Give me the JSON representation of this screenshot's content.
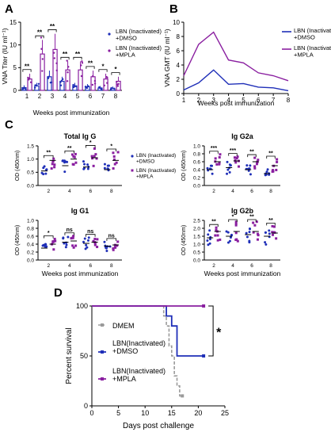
{
  "colors": {
    "dmso": "#1f2fb8",
    "mpla": "#8a1fa0",
    "dmem": "#9a9a9a",
    "axis": "#000000"
  },
  "chart_data": [
    {
      "panel": "A",
      "type": "bar",
      "xlabel": "Weeks post immunization",
      "ylabel": "VNA Titer (IU ml⁻¹)",
      "ylim": [
        0,
        15
      ],
      "yticks": [
        "0",
        "5",
        "10",
        "15"
      ],
      "categories": [
        "1",
        "2",
        "3",
        "4",
        "5",
        "6",
        "7",
        "8"
      ],
      "series": [
        {
          "name": "LBN (Inactivated) +DMSO",
          "values": [
            0.6,
            1.0,
            3.0,
            2.0,
            1.0,
            0.8,
            0.5,
            0.4
          ]
        },
        {
          "name": "LBN (Inactivated) +MPLA",
          "values": [
            2.5,
            8.0,
            9.0,
            4.5,
            4.5,
            3.0,
            2.5,
            2.0
          ]
        }
      ],
      "significance": [
        "**",
        "**",
        "**",
        "**",
        "**",
        "**",
        "*",
        "*"
      ]
    },
    {
      "panel": "B",
      "type": "line",
      "xlabel": "Weeks post immunization",
      "ylabel": "VNA GMT (IU ml⁻¹)",
      "ylim": [
        0,
        10
      ],
      "yticks": [
        "0",
        "2",
        "4",
        "6",
        "8",
        "10"
      ],
      "x": [
        1,
        2,
        3,
        4,
        5,
        6,
        7,
        8
      ],
      "series": [
        {
          "name": "LBN (Inactivated) +DMSO",
          "values": [
            0.5,
            1.5,
            3.3,
            1.3,
            1.4,
            0.9,
            0.8,
            0.4
          ]
        },
        {
          "name": "LBN (Inactivated) +MPLA",
          "values": [
            2.5,
            6.9,
            8.6,
            4.7,
            4.3,
            2.9,
            2.5,
            1.8
          ]
        }
      ]
    },
    {
      "panel": "C",
      "type": "scatter",
      "title": "Total Ig G",
      "ylabel": "OD (450nm)",
      "ylim": [
        0,
        1.5
      ],
      "yticks": [
        "0.0",
        "0.5",
        "1.0",
        "1.5"
      ],
      "categories": [
        "2",
        "4",
        "6",
        "8"
      ],
      "series": [
        {
          "name": "LBN (Inactivated) +DMSO",
          "means": [
            0.55,
            0.75,
            0.7,
            0.6
          ]
        },
        {
          "name": "LBN (Inactivated) +MPLA",
          "means": [
            0.95,
            1.0,
            1.05,
            0.95
          ]
        }
      ],
      "significance": [
        "**",
        "**",
        "*",
        "*"
      ]
    },
    {
      "panel": "C",
      "type": "scatter",
      "title": "Ig G2a",
      "ylabel": "OD (450nm)",
      "ylim": [
        0,
        1.0
      ],
      "yticks": [
        "0.0",
        "0.2",
        "0.4",
        "0.6",
        "0.8",
        "1.0"
      ],
      "categories": [
        "2",
        "4",
        "6",
        "8"
      ],
      "series": [
        {
          "name": "LBN (Inactivated) +DMSO",
          "means": [
            0.4,
            0.45,
            0.4,
            0.3
          ]
        },
        {
          "name": "LBN (Inactivated) +MPLA",
          "means": [
            0.6,
            0.62,
            0.6,
            0.5
          ]
        }
      ],
      "significance": [
        "***",
        "***",
        "**",
        "**"
      ]
    },
    {
      "panel": "C",
      "type": "scatter",
      "title": "Ig G1",
      "ylabel": "OD (450nm)",
      "ylim": [
        0,
        1.0
      ],
      "yticks": [
        "0.0",
        "0.2",
        "0.4",
        "0.6",
        "0.8",
        "1.0"
      ],
      "categories": [
        "2",
        "4",
        "6",
        "8"
      ],
      "series": [
        {
          "name": "LBN (Inactivated) +DMSO",
          "means": [
            0.3,
            0.45,
            0.42,
            0.35
          ]
        },
        {
          "name": "LBN (Inactivated) +MPLA",
          "means": [
            0.4,
            0.48,
            0.45,
            0.38
          ]
        }
      ],
      "significance": [
        "*",
        "ns",
        "ns",
        "ns"
      ]
    },
    {
      "panel": "C",
      "type": "scatter",
      "title": "Ig G2b",
      "ylabel": "OD (450nm)",
      "ylim": [
        0,
        2.5
      ],
      "yticks": [
        "0.0",
        "0.5",
        "1.0",
        "1.5",
        "2.0",
        "2.5"
      ],
      "categories": [
        "2",
        "4",
        "6",
        "8"
      ],
      "series": [
        {
          "name": "LBN (Inactivated) +DMSO",
          "means": [
            1.4,
            1.5,
            1.6,
            1.5
          ]
        },
        {
          "name": "LBN (Inactivated) +MPLA",
          "means": [
            1.8,
            1.8,
            1.8,
            1.7
          ]
        }
      ],
      "significance": [
        "**",
        "*",
        "**",
        "**"
      ]
    },
    {
      "panel": "D",
      "type": "line",
      "xlabel": "Days post challenge",
      "ylabel": "Percent survival",
      "xlim": [
        0,
        25
      ],
      "ylim": [
        0,
        100
      ],
      "xticks": [
        "0",
        "5",
        "10",
        "15",
        "20",
        "25"
      ],
      "yticks": [
        "0",
        "50",
        "100"
      ],
      "series": [
        {
          "name": "DMEM",
          "x": [
            0,
            13.5,
            13.5,
            14,
            14,
            14.5,
            14.5,
            15,
            15,
            15.5,
            15.5,
            16,
            16,
            16.5,
            16.5,
            17
          ],
          "y": [
            100,
            100,
            90,
            90,
            80,
            80,
            60,
            60,
            50,
            50,
            30,
            30,
            20,
            20,
            10,
            10
          ]
        },
        {
          "name": "LBN(Inactivated) +DMSO",
          "x": [
            0,
            14,
            14,
            15,
            15,
            16,
            16,
            21
          ],
          "y": [
            100,
            100,
            90,
            90,
            80,
            80,
            50,
            50
          ]
        },
        {
          "name": "LBN(Inactivated) +MPLA",
          "x": [
            0,
            21
          ],
          "y": [
            100,
            100
          ]
        }
      ],
      "significance": "*"
    }
  ],
  "texts": {
    "panel_a_letter": "A",
    "panel_b_letter": "B",
    "panel_c_letter": "C",
    "panel_d_letter": "D",
    "a_legend_dmso": "LBN (Inactivated)\n+DMSO",
    "a_legend_mpla": "LBN (Inactivated)\n+MPLA",
    "b_legend_dmso": "LBN (Inactivated)\n+DMSO",
    "b_legend_mpla": "LBN (Inactivated)\n+MPLA",
    "c_legend_dmso": "LBN (Inactivated)\n+DMSO",
    "c_legend_mpla": "LBN (Inactivated)\n+MPLA",
    "c_xlabel_left": "Weeks post immunization",
    "c_xlabel_right": "Weeks post immunization",
    "d_legend_dmem": "DMEM",
    "d_legend_dmso": "LBN(Inactivated)\n+DMSO",
    "d_legend_mpla": "LBN(Inactivated)\n+MPLA"
  }
}
